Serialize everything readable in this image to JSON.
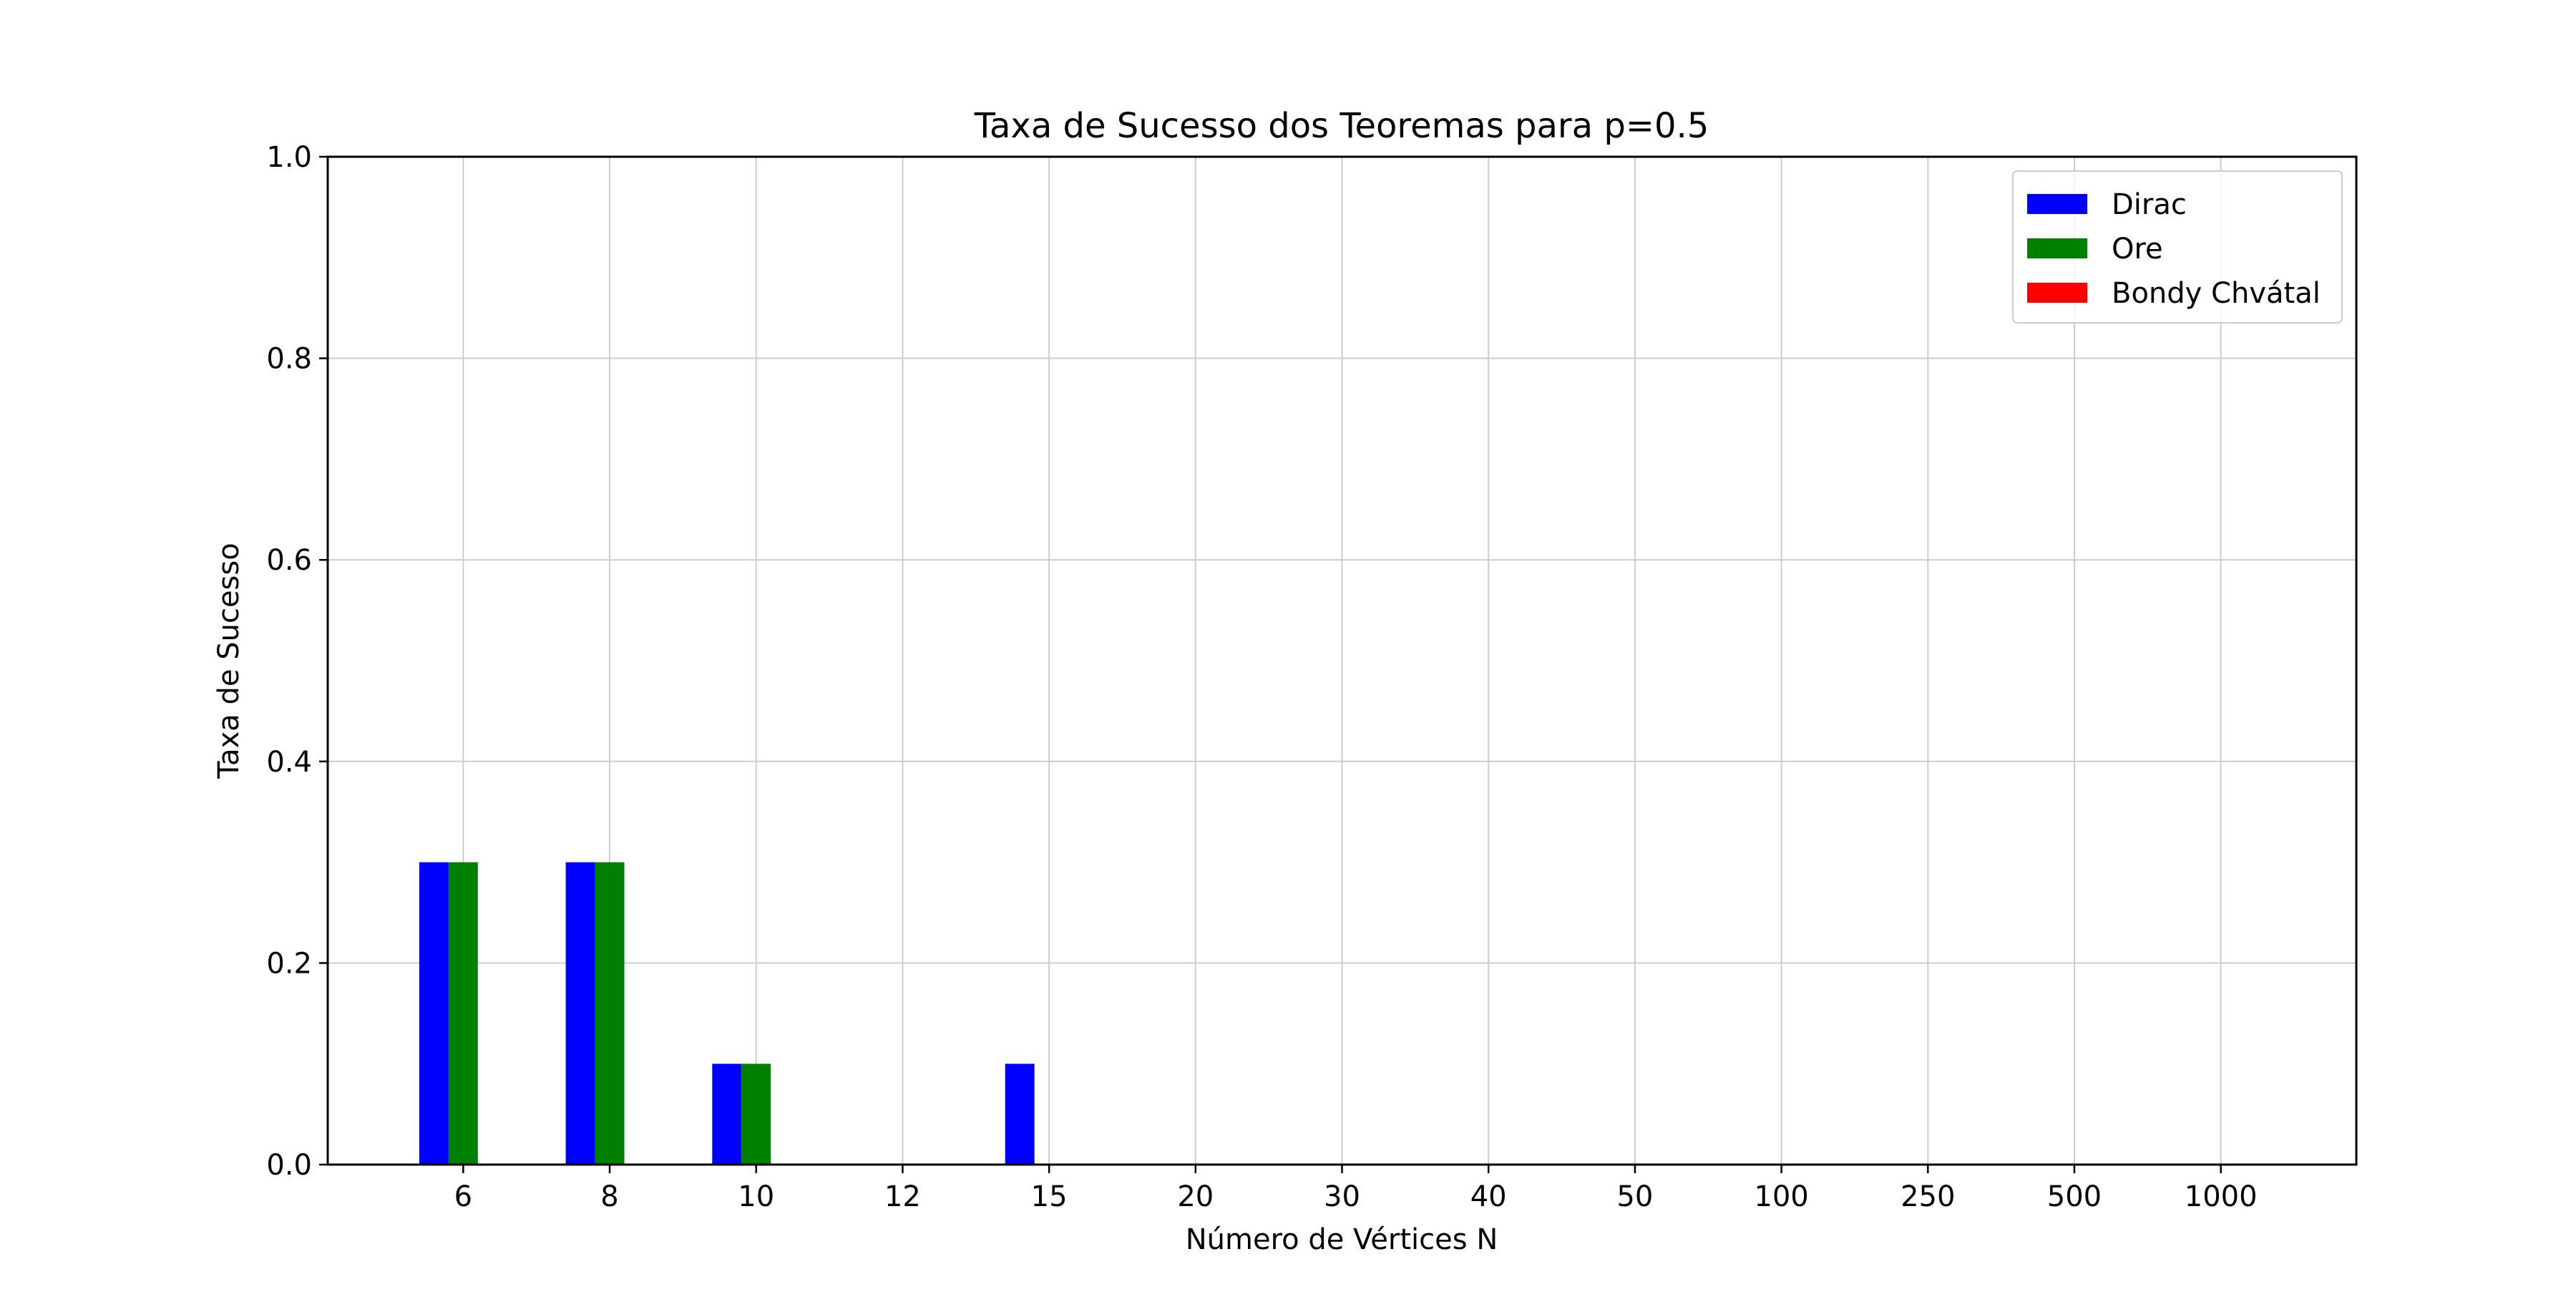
{
  "chart_data": {
    "type": "bar",
    "title": "Taxa de Sucesso dos Teoremas para p=0.5",
    "xlabel": "Número de Vértices N",
    "ylabel": "Taxa de Sucesso",
    "categories": [
      "6",
      "8",
      "10",
      "12",
      "15",
      "20",
      "30",
      "40",
      "50",
      "100",
      "250",
      "500",
      "1000"
    ],
    "ylim": [
      0,
      1.0
    ],
    "yticks": [
      "0.0",
      "0.2",
      "0.4",
      "0.6",
      "0.8",
      "1.0"
    ],
    "grid": true,
    "legend_position": "top-right",
    "series": [
      {
        "name": "Dirac",
        "color": "#0000ff",
        "values": [
          0.3,
          0.3,
          0.1,
          0,
          0.1,
          0,
          0,
          0,
          0,
          0,
          0,
          0,
          0
        ]
      },
      {
        "name": "Ore",
        "color": "#008000",
        "values": [
          0.3,
          0.3,
          0.1,
          0,
          0,
          0,
          0,
          0,
          0,
          0,
          0,
          0,
          0
        ]
      },
      {
        "name": "Bondy Chvátal",
        "color": "#ff0000",
        "values": [
          0,
          0,
          0,
          0,
          0,
          0,
          0,
          0,
          0,
          0,
          0,
          0,
          0
        ]
      }
    ]
  }
}
